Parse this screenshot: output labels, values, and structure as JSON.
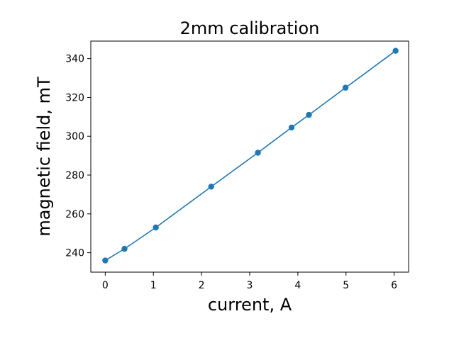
{
  "chart_data": {
    "type": "line",
    "title": "2mm calibration",
    "xlabel": "current, A",
    "ylabel": "magnetic field, mT",
    "xlim": [
      -0.3,
      6.3
    ],
    "ylim": [
      230,
      349
    ],
    "x_ticks": [
      0,
      1,
      2,
      3,
      4,
      5,
      6
    ],
    "y_ticks": [
      240,
      260,
      280,
      300,
      320,
      340
    ],
    "grid": false,
    "series": [
      {
        "color": "#1f77b4",
        "marker": "circle",
        "points": [
          {
            "x": 0.0,
            "y": 236
          },
          {
            "x": 0.4,
            "y": 242
          },
          {
            "x": 1.05,
            "y": 253
          },
          {
            "x": 2.2,
            "y": 274
          },
          {
            "x": 3.17,
            "y": 291.5
          },
          {
            "x": 3.87,
            "y": 304.5
          },
          {
            "x": 4.23,
            "y": 311
          },
          {
            "x": 4.99,
            "y": 325
          },
          {
            "x": 6.03,
            "y": 344
          }
        ]
      }
    ]
  }
}
